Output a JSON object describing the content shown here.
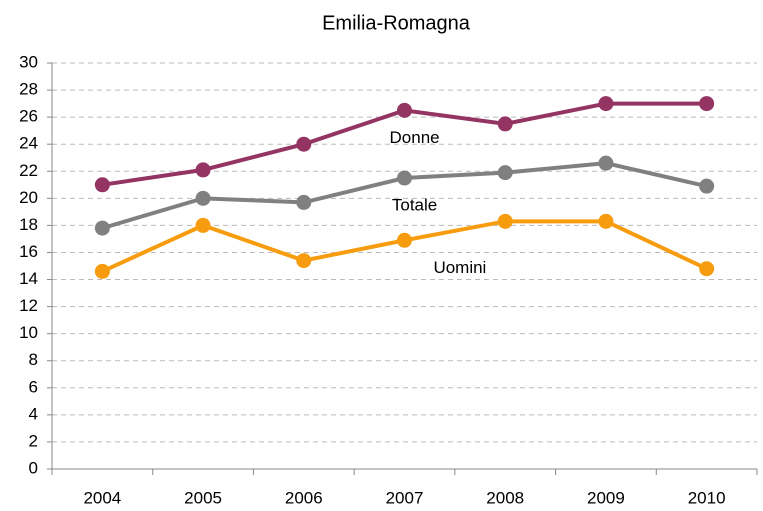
{
  "chart_data": {
    "type": "line",
    "title": "Emilia-Romagna",
    "categories": [
      "2004",
      "2005",
      "2006",
      "2007",
      "2008",
      "2009",
      "2010"
    ],
    "series": [
      {
        "name": "Donne",
        "color": "#943463",
        "values": [
          21.0,
          22.1,
          24.0,
          26.5,
          25.5,
          27.0,
          27.0
        ]
      },
      {
        "name": "Totale",
        "color": "#808080",
        "values": [
          17.8,
          20.0,
          19.7,
          21.5,
          21.9,
          22.6,
          20.9
        ]
      },
      {
        "name": "Uomini",
        "color": "#f79c0e",
        "values": [
          14.6,
          18.0,
          15.4,
          16.9,
          18.3,
          18.3,
          14.8
        ]
      }
    ],
    "ylim": [
      0,
      30
    ],
    "yticks": [
      0,
      2,
      4,
      6,
      8,
      10,
      12,
      14,
      16,
      18,
      20,
      22,
      24,
      26,
      28,
      30
    ],
    "grid": true
  }
}
